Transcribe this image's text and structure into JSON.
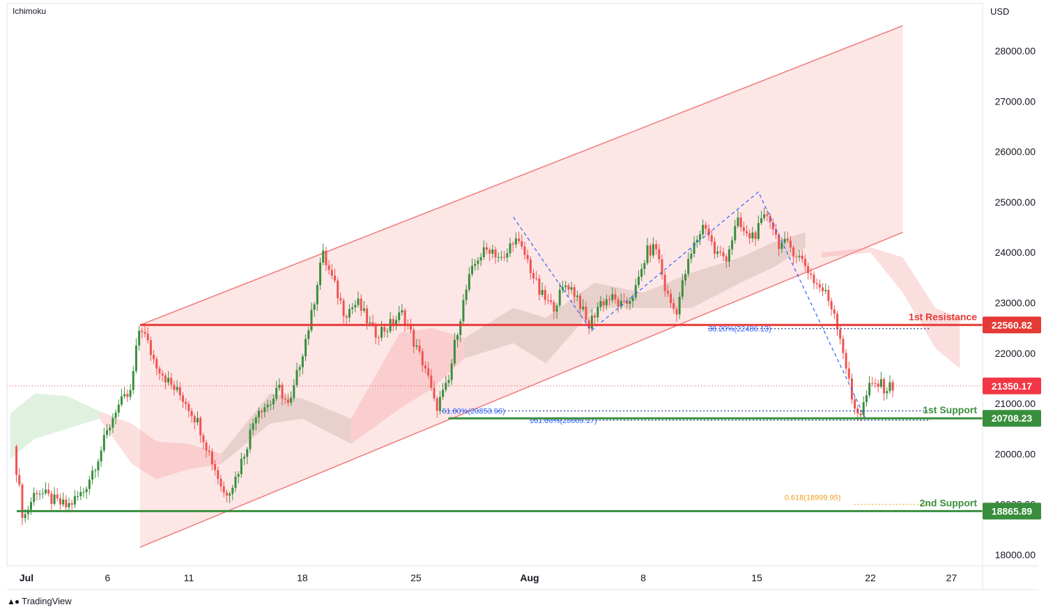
{
  "indicator_label": "Ichimoku",
  "currency_label": "USD",
  "watermark": "TradingView",
  "colors": {
    "up": "#388e3c",
    "down": "#ef5350",
    "channel_fill": "#fde2e2",
    "channel_line": "#f07a7a",
    "resistance": "#e53935",
    "support": "#388e3c",
    "fib": "#2962ff",
    "fib_golden": "#f0a020",
    "last_price": "#f23645"
  },
  "chart_data": {
    "type": "candlestick",
    "ylim": [
      17800,
      28900
    ],
    "y_ticks": [
      18000,
      19000,
      20000,
      21000,
      22000,
      23000,
      24000,
      25000,
      26000,
      27000,
      28000
    ],
    "x_tick_labels": [
      {
        "label": "Jul",
        "day": 1,
        "bold": true
      },
      {
        "label": "6",
        "day": 6
      },
      {
        "label": "11",
        "day": 11
      },
      {
        "label": "18",
        "day": 18
      },
      {
        "label": "25",
        "day": 25
      },
      {
        "label": "Aug",
        "day": 32,
        "bold": true
      },
      {
        "label": "8",
        "day": 39
      },
      {
        "label": "15",
        "day": 46
      },
      {
        "label": "22",
        "day": 53
      },
      {
        "label": "27",
        "day": 58
      }
    ],
    "ohlc_anchors": [
      [
        0.2,
        20150
      ],
      [
        0.8,
        18700
      ],
      [
        1.6,
        19300
      ],
      [
        2.5,
        19100
      ],
      [
        3.5,
        18950
      ],
      [
        4.5,
        19250
      ],
      [
        5.5,
        20000
      ],
      [
        6.5,
        20900
      ],
      [
        7.4,
        21200
      ],
      [
        8.0,
        22600
      ],
      [
        8.8,
        21900
      ],
      [
        9.8,
        21400
      ],
      [
        10.8,
        21050
      ],
      [
        11.6,
        20600
      ],
      [
        12.4,
        19900
      ],
      [
        13.2,
        19200
      ],
      [
        13.8,
        19450
      ],
      [
        14.5,
        20100
      ],
      [
        15.2,
        20900
      ],
      [
        16.0,
        21000
      ],
      [
        16.6,
        21300
      ],
      [
        17.2,
        20900
      ],
      [
        17.9,
        21900
      ],
      [
        18.6,
        22800
      ],
      [
        19.2,
        24000
      ],
      [
        19.8,
        23500
      ],
      [
        20.6,
        22800
      ],
      [
        21.4,
        23000
      ],
      [
        22.4,
        22400
      ],
      [
        23.2,
        22500
      ],
      [
        24.2,
        22800
      ],
      [
        25.0,
        22100
      ],
      [
        25.6,
        21700
      ],
      [
        26.2,
        20900
      ],
      [
        27.0,
        21400
      ],
      [
        27.5,
        22400
      ],
      [
        28.2,
        23400
      ],
      [
        28.8,
        23900
      ],
      [
        29.6,
        24100
      ],
      [
        30.4,
        23800
      ],
      [
        31.0,
        24300
      ],
      [
        31.8,
        23900
      ],
      [
        32.6,
        23200
      ],
      [
        33.4,
        22900
      ],
      [
        34.3,
        23400
      ],
      [
        35.0,
        23100
      ],
      [
        35.6,
        22500
      ],
      [
        36.3,
        23000
      ],
      [
        37.0,
        23100
      ],
      [
        37.8,
        22900
      ],
      [
        38.6,
        23300
      ],
      [
        39.2,
        24000
      ],
      [
        39.8,
        24100
      ],
      [
        40.4,
        23200
      ],
      [
        41.0,
        22800
      ],
      [
        41.6,
        23600
      ],
      [
        42.2,
        24200
      ],
      [
        42.8,
        24600
      ],
      [
        43.4,
        24000
      ],
      [
        44.1,
        23900
      ],
      [
        44.8,
        24600
      ],
      [
        45.4,
        24300
      ],
      [
        46.0,
        24400
      ],
      [
        46.7,
        24800
      ],
      [
        47.3,
        24200
      ],
      [
        48.1,
        24100
      ],
      [
        48.9,
        23800
      ],
      [
        49.6,
        23400
      ],
      [
        50.2,
        23200
      ],
      [
        50.8,
        22800
      ],
      [
        51.3,
        22100
      ],
      [
        51.9,
        21000
      ],
      [
        52.4,
        20800
      ],
      [
        52.9,
        21300
      ],
      [
        53.4,
        21400
      ],
      [
        54.0,
        21300
      ],
      [
        54.4,
        21350
      ]
    ],
    "channel": {
      "upper": [
        [
          8.0,
          22560
        ],
        [
          55.0,
          24400
        ]
      ],
      "lower": [
        [
          8.0,
          18150
        ],
        [
          55.0,
          28500
        ]
      ],
      "note_order": "upper_line_then_lower_line_by_price_span"
    },
    "cloud": {
      "green": [
        [
          0,
          20800
        ],
        [
          3,
          21100
        ],
        [
          5,
          20900
        ]
      ],
      "red_segments": [
        [
          9,
          20200
        ],
        [
          13,
          19600
        ],
        [
          27,
          21600
        ],
        [
          40,
          23100
        ]
      ]
    },
    "zigzag": [
      [
        31.0,
        24700
      ],
      [
        35.8,
        22450
      ],
      [
        46.1,
        25200
      ],
      [
        52.7,
        20700
      ]
    ],
    "levels": [
      {
        "name": "1st Resistance",
        "value": 22560.82,
        "label": "22560.82",
        "kind": "resistance",
        "from_day": 8.0
      },
      {
        "name": "1st Support",
        "value": 20708.23,
        "label": "20708.23",
        "kind": "support",
        "from_day": 27.0
      },
      {
        "name": "2nd Support",
        "value": 18865.89,
        "label": "18865.89",
        "kind": "support",
        "from_day": 0.4
      }
    ],
    "last_price": {
      "value": 21350.17,
      "label": "21350.17"
    },
    "fib_labels": [
      {
        "text": "38.20%(22486.13)",
        "value": 22486.13,
        "day_from": 43.0,
        "day_to": 55.0
      },
      {
        "text": "61.80%(20853.96)",
        "value": 20853.96,
        "day_from": 26.6,
        "day_to": 54.8
      },
      {
        "text": "161.80%(20669.17)",
        "value": 20669.17,
        "day_from": 32.0,
        "day_to": 55.0
      },
      {
        "text": "0.618(18999.95)",
        "value": 18999.95,
        "day_from": 52.0,
        "day_to": 55.0,
        "golden": true
      }
    ],
    "level_texts": {
      "r1": "1st Resistance",
      "s1": "1st Support",
      "s2": "2nd Support"
    }
  }
}
